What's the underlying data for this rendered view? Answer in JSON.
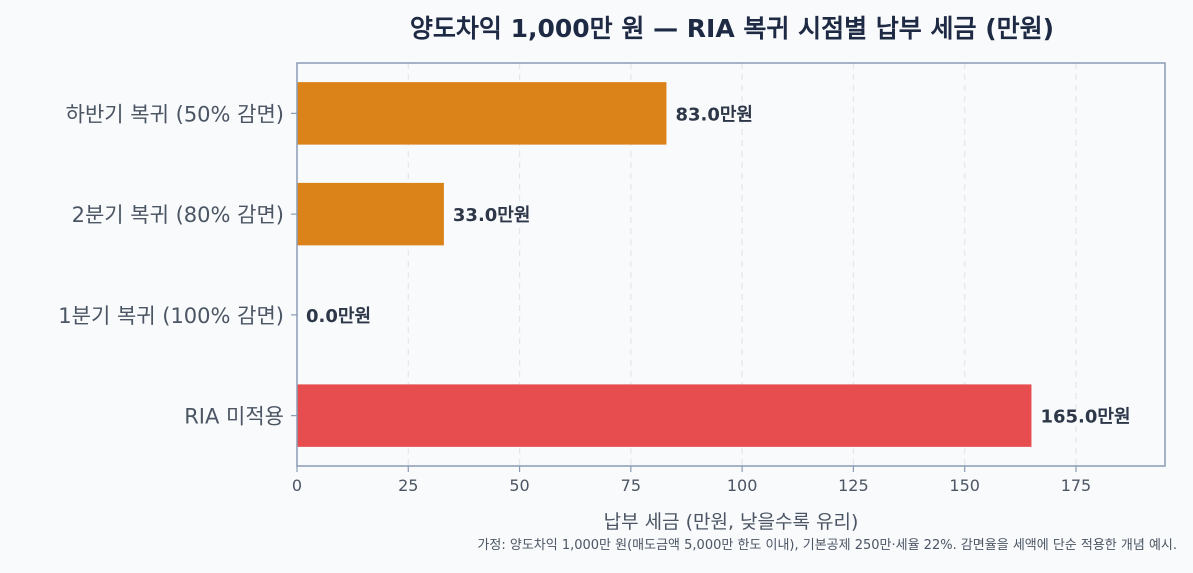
{
  "chart_data": {
    "type": "bar",
    "orientation": "horizontal",
    "title": "양도차익 1,000만 원 — RIA 복귀 시점별 납부 세금 (만원)",
    "xlabel": "납부 세금 (만원, 낮을수록 유리)",
    "ylabel": "",
    "xlim": [
      0,
      195
    ],
    "xticks": [
      0,
      25,
      50,
      75,
      100,
      125,
      150,
      175
    ],
    "grid": "vertical-dashed",
    "categories": [
      "하반기 복귀 (50% 감면)",
      "2분기 복귀 (80% 감면)",
      "1분기 복귀 (100% 감면)",
      "RIA 미적용"
    ],
    "values": [
      83.0,
      33.0,
      0.0,
      165.0
    ],
    "value_labels": [
      "83.0만원",
      "33.0만원",
      "0.0만원",
      "165.0만원"
    ],
    "bar_colors": [
      "#db8219",
      "#db8219",
      "#db8219",
      "#e74c4f"
    ],
    "footnote": "가정: 양도차익 1,000만 원(매도금액 5,000만 한도 이내), 기본공제 250만·세율 22%. 감면율을 세액에 단순 적용한 개념 예시."
  },
  "colors": {
    "background": "#f8fafc",
    "axis_frame": "#8a9bb5",
    "grid": "#e3e7ec",
    "title": "#1e2a44",
    "label_text": "#4b5563"
  }
}
